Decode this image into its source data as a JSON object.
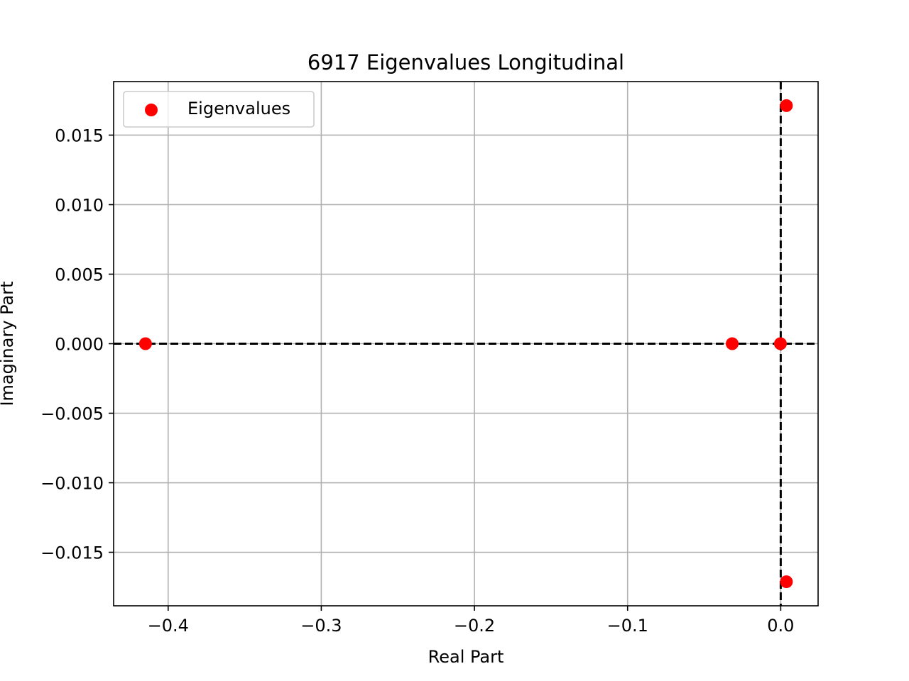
{
  "chart_data": {
    "type": "scatter",
    "title": "6917 Eigenvalues Longitudinal",
    "xlabel": "Real Part",
    "ylabel": "Imaginary Part",
    "xlim": [
      -0.4356,
      0.0244
    ],
    "ylim": [
      -0.01885,
      0.01885
    ],
    "xticks": [
      {
        "value": -0.4,
        "label": "−0.4"
      },
      {
        "value": -0.3,
        "label": "−0.3"
      },
      {
        "value": -0.2,
        "label": "−0.2"
      },
      {
        "value": -0.1,
        "label": "−0.1"
      },
      {
        "value": 0.0,
        "label": "0.0"
      }
    ],
    "yticks": [
      {
        "value": 0.015,
        "label": "0.015"
      },
      {
        "value": 0.01,
        "label": "0.010"
      },
      {
        "value": 0.005,
        "label": "0.005"
      },
      {
        "value": 0.0,
        "label": "0.000"
      },
      {
        "value": -0.005,
        "label": "−0.005"
      },
      {
        "value": -0.01,
        "label": "−0.010"
      },
      {
        "value": -0.015,
        "label": "−0.015"
      }
    ],
    "grid": true,
    "legend_position": "top-left",
    "reference_lines": [
      {
        "axis": "x",
        "value": 0,
        "style": "dashed"
      },
      {
        "axis": "y",
        "value": 0,
        "style": "dashed"
      }
    ],
    "series": [
      {
        "name": "Eigenvalues",
        "color": "#ff0000",
        "points": [
          {
            "x": -0.4148,
            "y": 0.0
          },
          {
            "x": -0.0317,
            "y": 0.0
          },
          {
            "x": -0.0002,
            "y": 0.0
          },
          {
            "x": 0.0037,
            "y": 0.01712
          },
          {
            "x": 0.0037,
            "y": -0.01712
          }
        ]
      }
    ]
  }
}
